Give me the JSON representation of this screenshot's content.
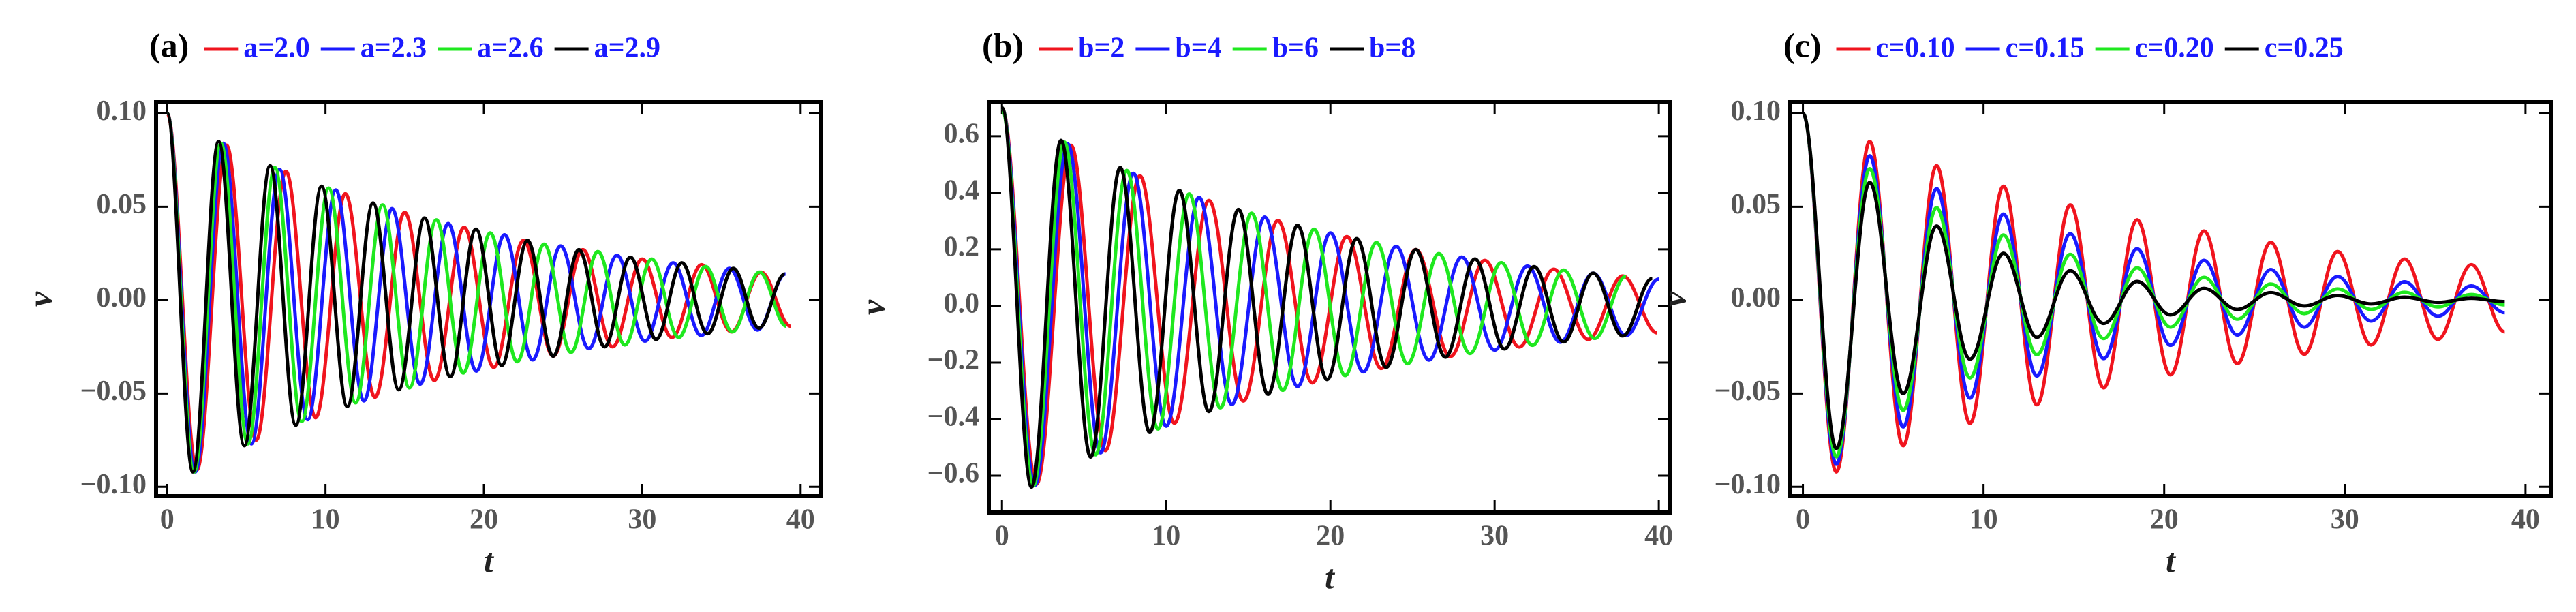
{
  "chart_data": [
    {
      "type": "line",
      "panel_label": "(a)",
      "xlabel": "t",
      "ylabel": "v",
      "xlim": [
        -0.7,
        41.3
      ],
      "ylim": [
        -0.105,
        0.106
      ],
      "xticks": [
        0,
        10,
        20,
        30,
        40
      ],
      "yticks": [
        {
          "value": -0.1,
          "label": "−0.10"
        },
        {
          "value": -0.05,
          "label": "−0.05"
        },
        {
          "value": 0,
          "label": "0.00"
        },
        {
          "value": 0.05,
          "label": "0.05"
        },
        {
          "value": 0.1,
          "label": "0.10"
        }
      ],
      "series": [
        {
          "name": "a=2.0",
          "color": "#f0141e",
          "x": [
            0,
            1.875,
            3.75,
            5.625,
            7.5,
            9.375,
            11.25,
            13.125,
            15,
            16.875,
            18.75,
            20.625,
            22.5,
            24.375,
            26.25,
            28.125,
            30,
            31.875,
            33.75,
            35.625,
            37.5,
            39.375
          ],
          "values": [
            0.1,
            -0.091,
            0.083,
            -0.075,
            0.069,
            -0.063,
            0.057,
            -0.052,
            0.047,
            -0.043,
            0.039,
            -0.036,
            0.032,
            -0.03,
            0.027,
            -0.025,
            0.022,
            -0.02,
            0.019,
            -0.017,
            0.015,
            -0.014
          ]
        },
        {
          "name": "a=2.3",
          "color": "#1a1aff",
          "x": [
            0,
            1.775,
            3.55,
            5.325,
            7.1,
            8.875,
            10.65,
            12.425,
            14.2,
            15.975,
            17.75,
            19.525,
            21.3,
            23.075,
            24.85,
            26.625,
            28.4,
            30.175,
            31.95,
            33.725,
            35.5,
            37.275,
            39.05
          ],
          "values": [
            0.1,
            -0.092,
            0.084,
            -0.077,
            0.07,
            -0.064,
            0.059,
            -0.054,
            0.049,
            -0.045,
            0.041,
            -0.038,
            0.035,
            -0.032,
            0.029,
            -0.026,
            0.024,
            -0.022,
            0.02,
            -0.019,
            0.017,
            -0.016,
            0.014
          ]
        },
        {
          "name": "a=2.6",
          "color": "#1fe81f",
          "x": [
            0,
            1.7,
            3.4,
            5.1,
            6.8,
            8.5,
            10.2,
            11.9,
            13.6,
            15.3,
            17,
            18.7,
            20.4,
            22.1,
            23.8,
            25.5,
            27.2,
            28.9,
            30.6,
            32.3,
            34,
            35.7,
            37.4,
            39.1
          ],
          "values": [
            0.1,
            -0.092,
            0.084,
            -0.077,
            0.071,
            -0.065,
            0.06,
            -0.055,
            0.051,
            -0.047,
            0.043,
            -0.039,
            0.036,
            -0.033,
            0.03,
            -0.028,
            0.026,
            -0.024,
            0.022,
            -0.02,
            0.018,
            -0.017,
            0.015,
            -0.014
          ]
        },
        {
          "name": "a=2.9",
          "color": "#000000",
          "x": [
            0,
            1.625,
            3.25,
            4.875,
            6.5,
            8.125,
            9.75,
            11.375,
            13,
            14.625,
            16.25,
            17.875,
            19.5,
            21.125,
            22.75,
            24.375,
            26,
            27.625,
            29.25,
            30.875,
            32.5,
            34.125,
            35.75,
            37.375,
            39
          ],
          "values": [
            0.1,
            -0.092,
            0.085,
            -0.078,
            0.072,
            -0.067,
            0.061,
            -0.057,
            0.052,
            -0.048,
            0.044,
            -0.041,
            0.038,
            -0.035,
            0.032,
            -0.03,
            0.027,
            -0.025,
            0.023,
            -0.021,
            0.02,
            -0.018,
            0.017,
            -0.015,
            0.014
          ]
        }
      ]
    },
    {
      "type": "line",
      "panel_label": "(b)",
      "xlabel": "t",
      "ylabel": "v",
      "xlim": [
        -0.8,
        40.7
      ],
      "ylim": [
        -0.73,
        0.72
      ],
      "xticks": [
        0,
        10,
        20,
        30,
        40
      ],
      "yticks": [
        {
          "value": -0.6,
          "label": "−0.6"
        },
        {
          "value": -0.4,
          "label": "−0.4"
        },
        {
          "value": -0.2,
          "label": "−0.2"
        },
        {
          "value": 0,
          "label": "0.0"
        },
        0.2,
        0.4,
        0.6
      ],
      "series": [
        {
          "name": "b=2",
          "color": "#f0141e",
          "x": [
            0,
            2.1,
            4.2,
            6.3,
            8.4,
            10.5,
            12.6,
            14.7,
            16.8,
            18.9,
            21,
            23.1,
            25.2,
            27.3,
            29.4,
            31.5,
            33.6,
            35.7,
            37.8,
            39.9
          ],
          "values": [
            0.7,
            -0.63,
            0.568,
            -0.511,
            0.46,
            -0.414,
            0.373,
            -0.336,
            0.302,
            -0.272,
            0.245,
            -0.221,
            0.199,
            -0.179,
            0.161,
            -0.145,
            0.13,
            -0.118,
            0.106,
            -0.095
          ]
        },
        {
          "name": "b=4",
          "color": "#1a1aff",
          "x": [
            0,
            2,
            4,
            6,
            8,
            10,
            12,
            14,
            16,
            18,
            20,
            22,
            24,
            26,
            28,
            30,
            32,
            34,
            36,
            38,
            40
          ],
          "values": [
            0.7,
            -0.634,
            0.573,
            -0.519,
            0.469,
            -0.425,
            0.384,
            -0.348,
            0.314,
            -0.285,
            0.258,
            -0.233,
            0.211,
            -0.191,
            0.173,
            -0.156,
            0.141,
            -0.128,
            0.116,
            -0.105,
            0.095
          ]
        },
        {
          "name": "b=6",
          "color": "#1fe81f",
          "x": [
            0,
            1.9,
            3.8,
            5.7,
            7.6,
            9.5,
            11.4,
            13.3,
            15.2,
            17.1,
            19,
            20.9,
            22.8,
            24.7,
            26.6,
            28.5,
            30.4,
            32.3,
            34.2,
            36.1,
            38
          ],
          "values": [
            0.7,
            -0.636,
            0.579,
            -0.526,
            0.479,
            -0.435,
            0.396,
            -0.36,
            0.328,
            -0.298,
            0.271,
            -0.246,
            0.224,
            -0.204,
            0.185,
            -0.168,
            0.153,
            -0.139,
            0.127,
            -0.115,
            0.105
          ]
        },
        {
          "name": "b=8",
          "color": "#000000",
          "x": [
            0,
            1.8,
            3.6,
            5.4,
            7.2,
            9,
            10.8,
            12.6,
            14.4,
            16.2,
            18,
            19.8,
            21.6,
            23.4,
            25.2,
            27,
            28.8,
            30.6,
            32.4,
            34.2,
            36,
            37.8,
            39.6
          ],
          "values": [
            0.7,
            -0.64,
            0.585,
            -0.534,
            0.489,
            -0.447,
            0.408,
            -0.373,
            0.341,
            -0.312,
            0.285,
            -0.26,
            0.238,
            -0.217,
            0.199,
            -0.181,
            0.166,
            -0.152,
            0.139,
            -0.127,
            0.116,
            -0.106,
            0.097
          ]
        }
      ]
    },
    {
      "type": "line",
      "panel_label": "(c)",
      "xlabel": "t",
      "ylabel": "v",
      "xlim": [
        -0.7,
        41.4
      ],
      "ylim": [
        -0.105,
        0.106
      ],
      "xticks": [
        0,
        10,
        20,
        30,
        40
      ],
      "yticks": [
        {
          "value": -0.1,
          "label": "−0.10"
        },
        {
          "value": -0.05,
          "label": "−0.05"
        },
        {
          "value": 0,
          "label": "0.00"
        },
        {
          "value": 0.05,
          "label": "0.05"
        },
        {
          "value": 0.1,
          "label": "0.10"
        }
      ],
      "x": [
        0,
        1.85,
        3.7,
        5.55,
        7.4,
        9.25,
        11.1,
        12.95,
        14.8,
        16.65,
        18.5,
        20.35,
        22.2,
        24.05,
        25.9,
        27.75,
        29.6,
        31.45,
        33.3,
        35.15,
        37,
        38.85
      ],
      "series": [
        {
          "name": "c=0.10",
          "color": "#f0141e",
          "values": [
            0.1,
            -0.092,
            0.085,
            -0.078,
            0.072,
            -0.066,
            0.061,
            -0.056,
            0.051,
            -0.047,
            0.043,
            -0.04,
            0.037,
            -0.034,
            0.031,
            -0.029,
            0.026,
            -0.024,
            0.022,
            -0.021,
            0.019,
            -0.017
          ]
        },
        {
          "name": "c=0.15",
          "color": "#1a1aff",
          "values": [
            0.1,
            -0.0879,
            0.0773,
            -0.0679,
            0.0597,
            -0.0525,
            0.0461,
            -0.0406,
            0.0356,
            -0.0313,
            0.0275,
            -0.0242,
            0.0213,
            -0.0187,
            0.0164,
            -0.0145,
            0.0127,
            -0.0112,
            0.0098,
            -0.0086,
            0.0076,
            -0.0067
          ]
        },
        {
          "name": "c=0.20",
          "color": "#1fe81f",
          "values": [
            0.1,
            -0.0839,
            0.0704,
            -0.059,
            0.0495,
            -0.0416,
            0.0349,
            -0.0292,
            0.0245,
            -0.0206,
            0.0173,
            -0.0145,
            0.0122,
            -0.0102,
            0.0086,
            -0.0072,
            0.006,
            -0.005,
            0.0042,
            -0.0036,
            0.003,
            -0.0025
          ]
        },
        {
          "name": "c=0.25",
          "color": "#000000",
          "values": [
            0.1,
            -0.0794,
            0.063,
            -0.0501,
            0.0397,
            -0.0316,
            0.0251,
            -0.0199,
            0.0158,
            -0.0125,
            0.01,
            -0.0079,
            0.0063,
            -0.005,
            0.004,
            -0.0031,
            0.0025,
            -0.002,
            0.0016,
            -0.0012,
            0.001,
            -0.0008
          ]
        }
      ]
    }
  ]
}
